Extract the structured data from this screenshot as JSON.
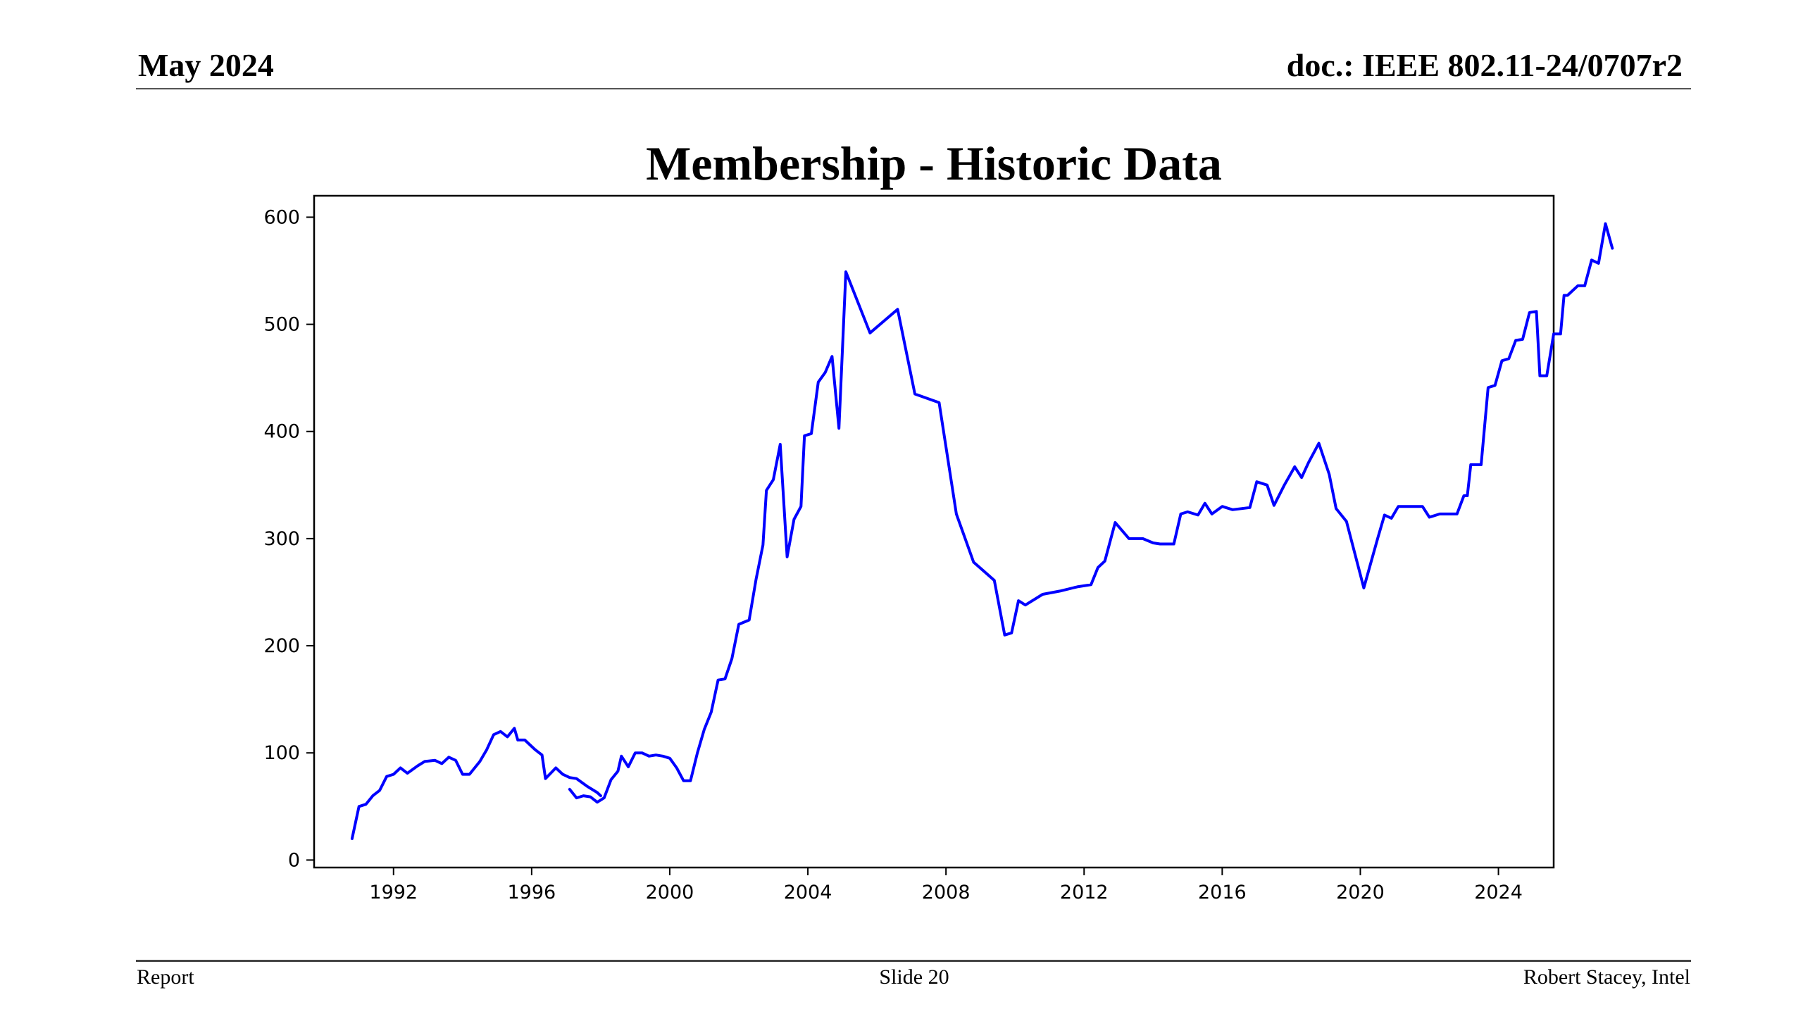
{
  "header": {
    "date": "May 2024",
    "doc": "doc.: IEEE 802.11-24/0707r2"
  },
  "title": "Membership - Historic Data",
  "footer": {
    "left": "Report",
    "center": "Slide 20",
    "right": "Robert Stacey, Intel"
  },
  "colors": {
    "line": "#0000ff",
    "axis": "#000000"
  },
  "chart_data": {
    "type": "line",
    "title": "Membership - Historic Data",
    "xlabel": "",
    "ylabel": "",
    "xlim": [
      1989.7,
      2025.6
    ],
    "ylim": [
      -7,
      620
    ],
    "x_ticks": [
      1992,
      1996,
      2000,
      2004,
      2008,
      2012,
      2016,
      2020,
      2024
    ],
    "y_ticks": [
      0,
      100,
      200,
      300,
      400,
      500,
      600
    ],
    "grid": false,
    "legend": "none",
    "series": [
      {
        "color": "#0000ff",
        "segments": [
          [
            [
              1990.8,
              20
            ],
            [
              1991.0,
              50
            ],
            [
              1991.2,
              52
            ],
            [
              1991.4,
              60
            ],
            [
              1991.6,
              65
            ],
            [
              1991.8,
              78
            ],
            [
              1992.0,
              80
            ],
            [
              1992.2,
              86
            ],
            [
              1992.4,
              81
            ],
            [
              1992.7,
              88
            ],
            [
              1992.9,
              92
            ],
            [
              1993.2,
              93
            ],
            [
              1993.4,
              90
            ],
            [
              1993.6,
              96
            ],
            [
              1993.8,
              93
            ],
            [
              1994.0,
              80
            ],
            [
              1994.2,
              80
            ],
            [
              1994.5,
              92
            ],
            [
              1994.7,
              103
            ],
            [
              1994.9,
              117
            ],
            [
              1995.1,
              120
            ],
            [
              1995.3,
              115
            ],
            [
              1995.5,
              123
            ],
            [
              1995.6,
              112
            ],
            [
              1995.8,
              112
            ],
            [
              1996.1,
              103
            ],
            [
              1996.3,
              98
            ],
            [
              1996.4,
              76
            ],
            [
              1996.7,
              86
            ],
            [
              1996.9,
              80
            ],
            [
              1997.1,
              77
            ],
            [
              1997.3,
              76
            ],
            [
              1997.6,
              69
            ],
            [
              1997.9,
              63
            ],
            [
              1998.0,
              60
            ]
          ],
          [
            [
              1997.1,
              66
            ],
            [
              1997.3,
              58
            ],
            [
              1997.5,
              60
            ],
            [
              1997.7,
              59
            ],
            [
              1997.9,
              54
            ],
            [
              1998.1,
              58
            ],
            [
              1998.3,
              75
            ],
            [
              1998.5,
              83
            ],
            [
              1998.6,
              97
            ],
            [
              1998.8,
              87
            ],
            [
              1999.0,
              100
            ],
            [
              1999.2,
              100
            ],
            [
              1999.4,
              97
            ],
            [
              1999.6,
              98
            ],
            [
              1999.8,
              97
            ],
            [
              2000.0,
              95
            ],
            [
              2000.2,
              86
            ],
            [
              2000.4,
              74
            ],
            [
              2000.6,
              74
            ],
            [
              2000.8,
              100
            ],
            [
              2001.0,
              122
            ],
            [
              2001.2,
              138
            ],
            [
              2001.4,
              168
            ],
            [
              2001.6,
              169
            ],
            [
              2001.8,
              188
            ],
            [
              2002.0,
              220
            ],
            [
              2002.3,
              224
            ],
            [
              2002.5,
              262
            ],
            [
              2002.7,
              294
            ],
            [
              2002.8,
              345
            ],
            [
              2003.0,
              355
            ],
            [
              2003.2,
              388
            ],
            [
              2003.4,
              283
            ],
            [
              2003.6,
              318
            ],
            [
              2003.8,
              330
            ],
            [
              2003.9,
              396
            ],
            [
              2004.1,
              398
            ],
            [
              2004.3,
              446
            ],
            [
              2004.5,
              455
            ],
            [
              2004.7,
              470
            ],
            [
              2004.9,
              403
            ],
            [
              2005.1,
              549
            ],
            [
              2005.8,
              492
            ],
            [
              2006.6,
              514
            ],
            [
              2007.1,
              435
            ],
            [
              2007.8,
              427
            ],
            [
              2008.3,
              323
            ],
            [
              2008.8,
              278
            ],
            [
              2009.4,
              261
            ],
            [
              2009.7,
              210
            ],
            [
              2009.9,
              212
            ],
            [
              2010.1,
              242
            ],
            [
              2010.3,
              238
            ],
            [
              2010.8,
              248
            ],
            [
              2011.3,
              251
            ],
            [
              2011.8,
              255
            ],
            [
              2012.2,
              257
            ],
            [
              2012.4,
              273
            ],
            [
              2012.6,
              279
            ],
            [
              2012.9,
              315
            ],
            [
              2013.3,
              300
            ],
            [
              2013.7,
              300
            ],
            [
              2014.0,
              296
            ],
            [
              2014.2,
              295
            ],
            [
              2014.6,
              295
            ],
            [
              2014.8,
              323
            ],
            [
              2015.0,
              325
            ],
            [
              2015.3,
              322
            ],
            [
              2015.5,
              333
            ],
            [
              2015.7,
              323
            ],
            [
              2016.0,
              330
            ],
            [
              2016.3,
              327
            ],
            [
              2016.8,
              329
            ],
            [
              2017.0,
              353
            ],
            [
              2017.3,
              350
            ],
            [
              2017.5,
              331
            ],
            [
              2017.8,
              350
            ],
            [
              2018.1,
              367
            ],
            [
              2018.3,
              357
            ],
            [
              2018.5,
              371
            ],
            [
              2018.8,
              389
            ],
            [
              2019.1,
              360
            ],
            [
              2019.3,
              328
            ],
            [
              2019.6,
              316
            ],
            [
              2020.1,
              254
            ],
            [
              2020.5,
              300
            ],
            [
              2020.7,
              322
            ],
            [
              2020.9,
              319
            ],
            [
              2021.1,
              330
            ],
            [
              2021.4,
              330
            ],
            [
              2021.8,
              330
            ],
            [
              2022.0,
              320
            ],
            [
              2022.3,
              323
            ],
            [
              2022.6,
              323
            ],
            [
              2022.8,
              323
            ],
            [
              2023.0,
              340
            ],
            [
              2023.1,
              340
            ],
            [
              2023.2,
              369
            ],
            [
              2023.5,
              369
            ],
            [
              2023.7,
              441
            ],
            [
              2023.9,
              443
            ],
            [
              2024.1,
              466
            ],
            [
              2024.3,
              468
            ],
            [
              2024.5,
              485
            ],
            [
              2024.7,
              486
            ],
            [
              2024.9,
              511
            ],
            [
              2025.1,
              512
            ],
            [
              2025.2,
              452
            ],
            [
              2025.4,
              452
            ],
            [
              2025.6,
              491
            ],
            [
              2025.8,
              491
            ],
            [
              2025.9,
              527
            ],
            [
              2026.0,
              527
            ],
            [
              2026.3,
              536
            ],
            [
              2026.5,
              536
            ],
            [
              2026.7,
              560
            ],
            [
              2026.9,
              557
            ],
            [
              2027.1,
              594
            ],
            [
              2027.3,
              571
            ]
          ]
        ]
      }
    ]
  }
}
